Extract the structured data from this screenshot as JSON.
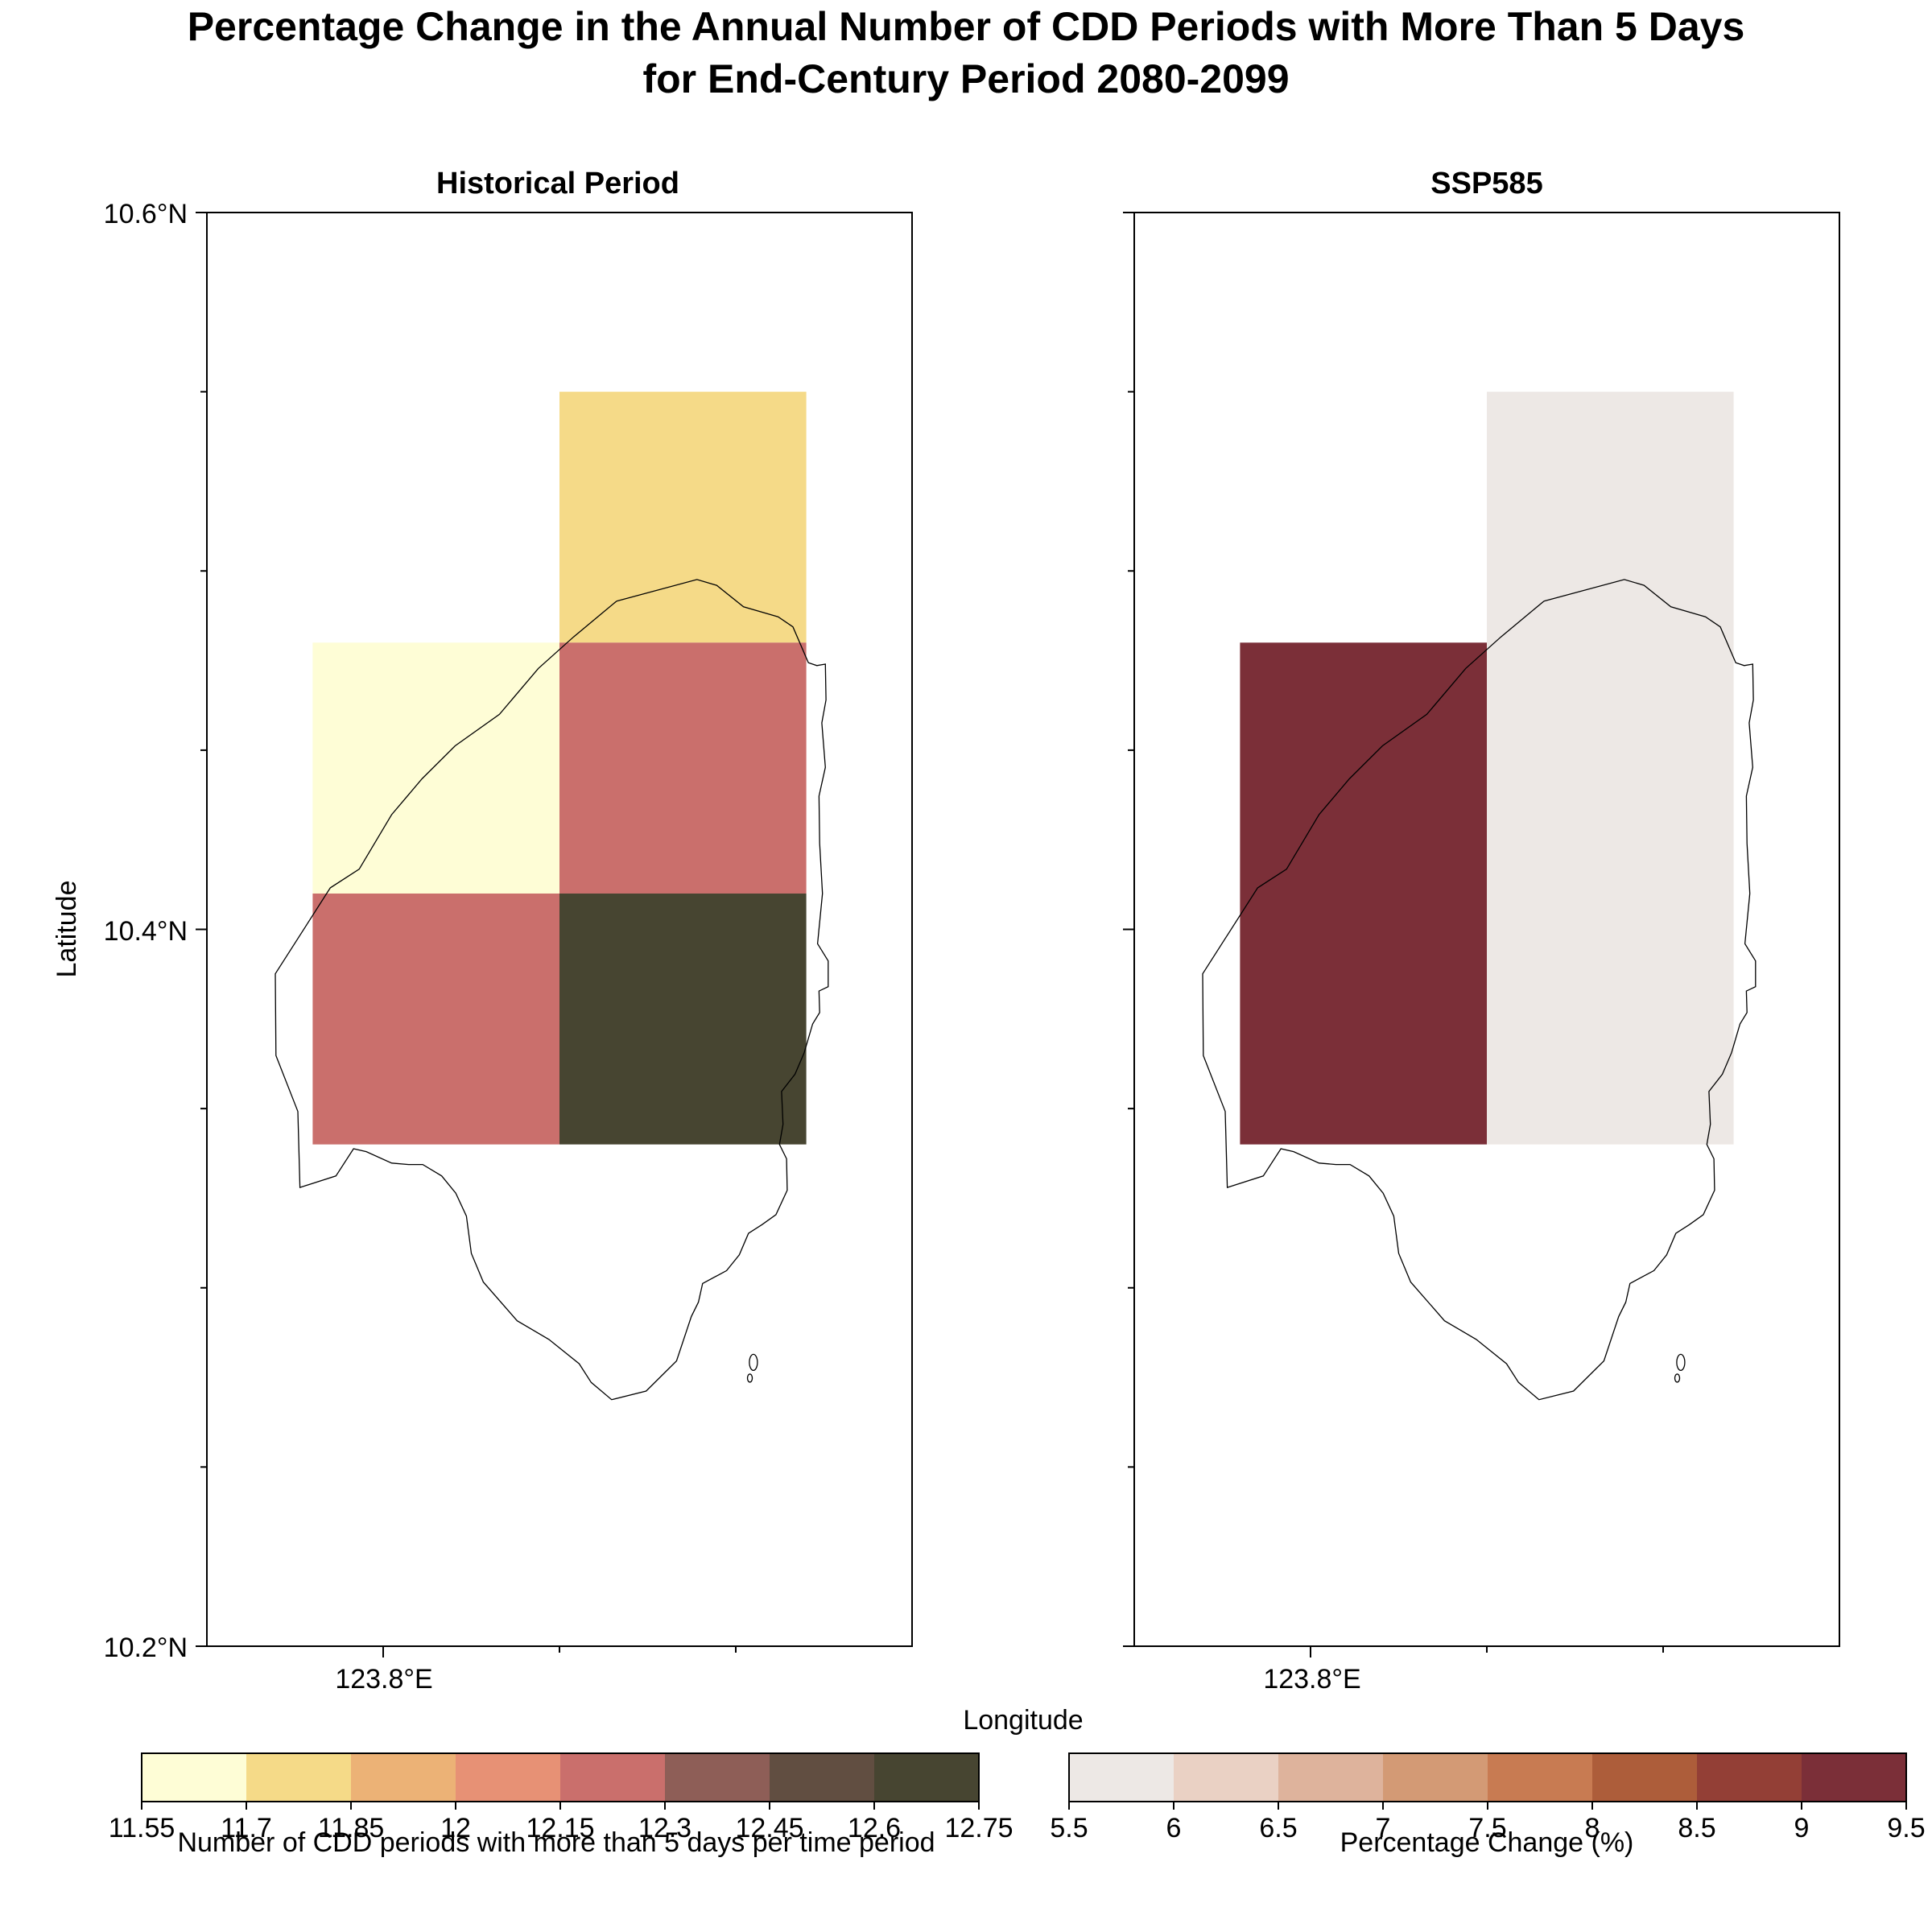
{
  "title_line1": "Percentage Change in the Annual Number of CDD Periods with More Than 5 Days",
  "title_line2": "for End-Century Period 2080-2099",
  "xlabel": "Longitude",
  "ylabel": "Latitude",
  "chart_data": [
    {
      "type": "heatmap",
      "title": "Historical Period",
      "x_tick_labels": [
        "123.8°E"
      ],
      "y_tick_labels": [
        "10.6°N",
        "10.4°N",
        "10.2°N"
      ],
      "ylim": [
        10.2,
        10.6
      ],
      "cells": [
        {
          "lon_range": [
            123.85,
            123.92
          ],
          "lat_range": [
            10.48,
            10.55
          ],
          "value": 11.8
        },
        {
          "lon_range": [
            123.78,
            123.85
          ],
          "lat_range": [
            10.41,
            10.48
          ],
          "value": 11.6
        },
        {
          "lon_range": [
            123.85,
            123.92
          ],
          "lat_range": [
            10.41,
            10.48
          ],
          "value": 12.2
        },
        {
          "lon_range": [
            123.78,
            123.85
          ],
          "lat_range": [
            10.34,
            10.41
          ],
          "value": 12.2
        },
        {
          "lon_range": [
            123.85,
            123.92
          ],
          "lat_range": [
            10.34,
            10.41
          ],
          "value": 12.7
        }
      ],
      "colorbar": {
        "label": "Number of CDD periods with more than 5 days per time period",
        "boundaries": [
          "11.55",
          "11.7",
          "11.85",
          "12",
          "12.15",
          "12.3",
          "12.45",
          "12.6",
          "12.75"
        ],
        "colors": [
          "#fefdd6",
          "#f5da88",
          "#ecb276",
          "#e79175",
          "#ca6f6c",
          "#8e5e57",
          "#614e41",
          "#474531"
        ]
      }
    },
    {
      "type": "heatmap",
      "title": "SSP585",
      "x_tick_labels": [
        "123.8°E"
      ],
      "ylim": [
        10.2,
        10.6
      ],
      "cells": [
        {
          "lon_range": [
            123.85,
            123.92
          ],
          "lat_range": [
            10.34,
            10.55
          ],
          "value": 5.7
        },
        {
          "lon_range": [
            123.78,
            123.85
          ],
          "lat_range": [
            10.34,
            10.48
          ],
          "value": 9.3
        }
      ],
      "colorbar": {
        "label": "Percentage Change (%)",
        "boundaries": [
          "5.5",
          "6",
          "6.5",
          "7",
          "7.5",
          "8",
          "8.5",
          "9",
          "9.5"
        ],
        "colors": [
          "#ede8e5",
          "#ead1c4",
          "#deb39c",
          "#d39a75",
          "#c87b52",
          "#ad5d3a",
          "#933f36",
          "#7b2f38"
        ]
      }
    }
  ]
}
